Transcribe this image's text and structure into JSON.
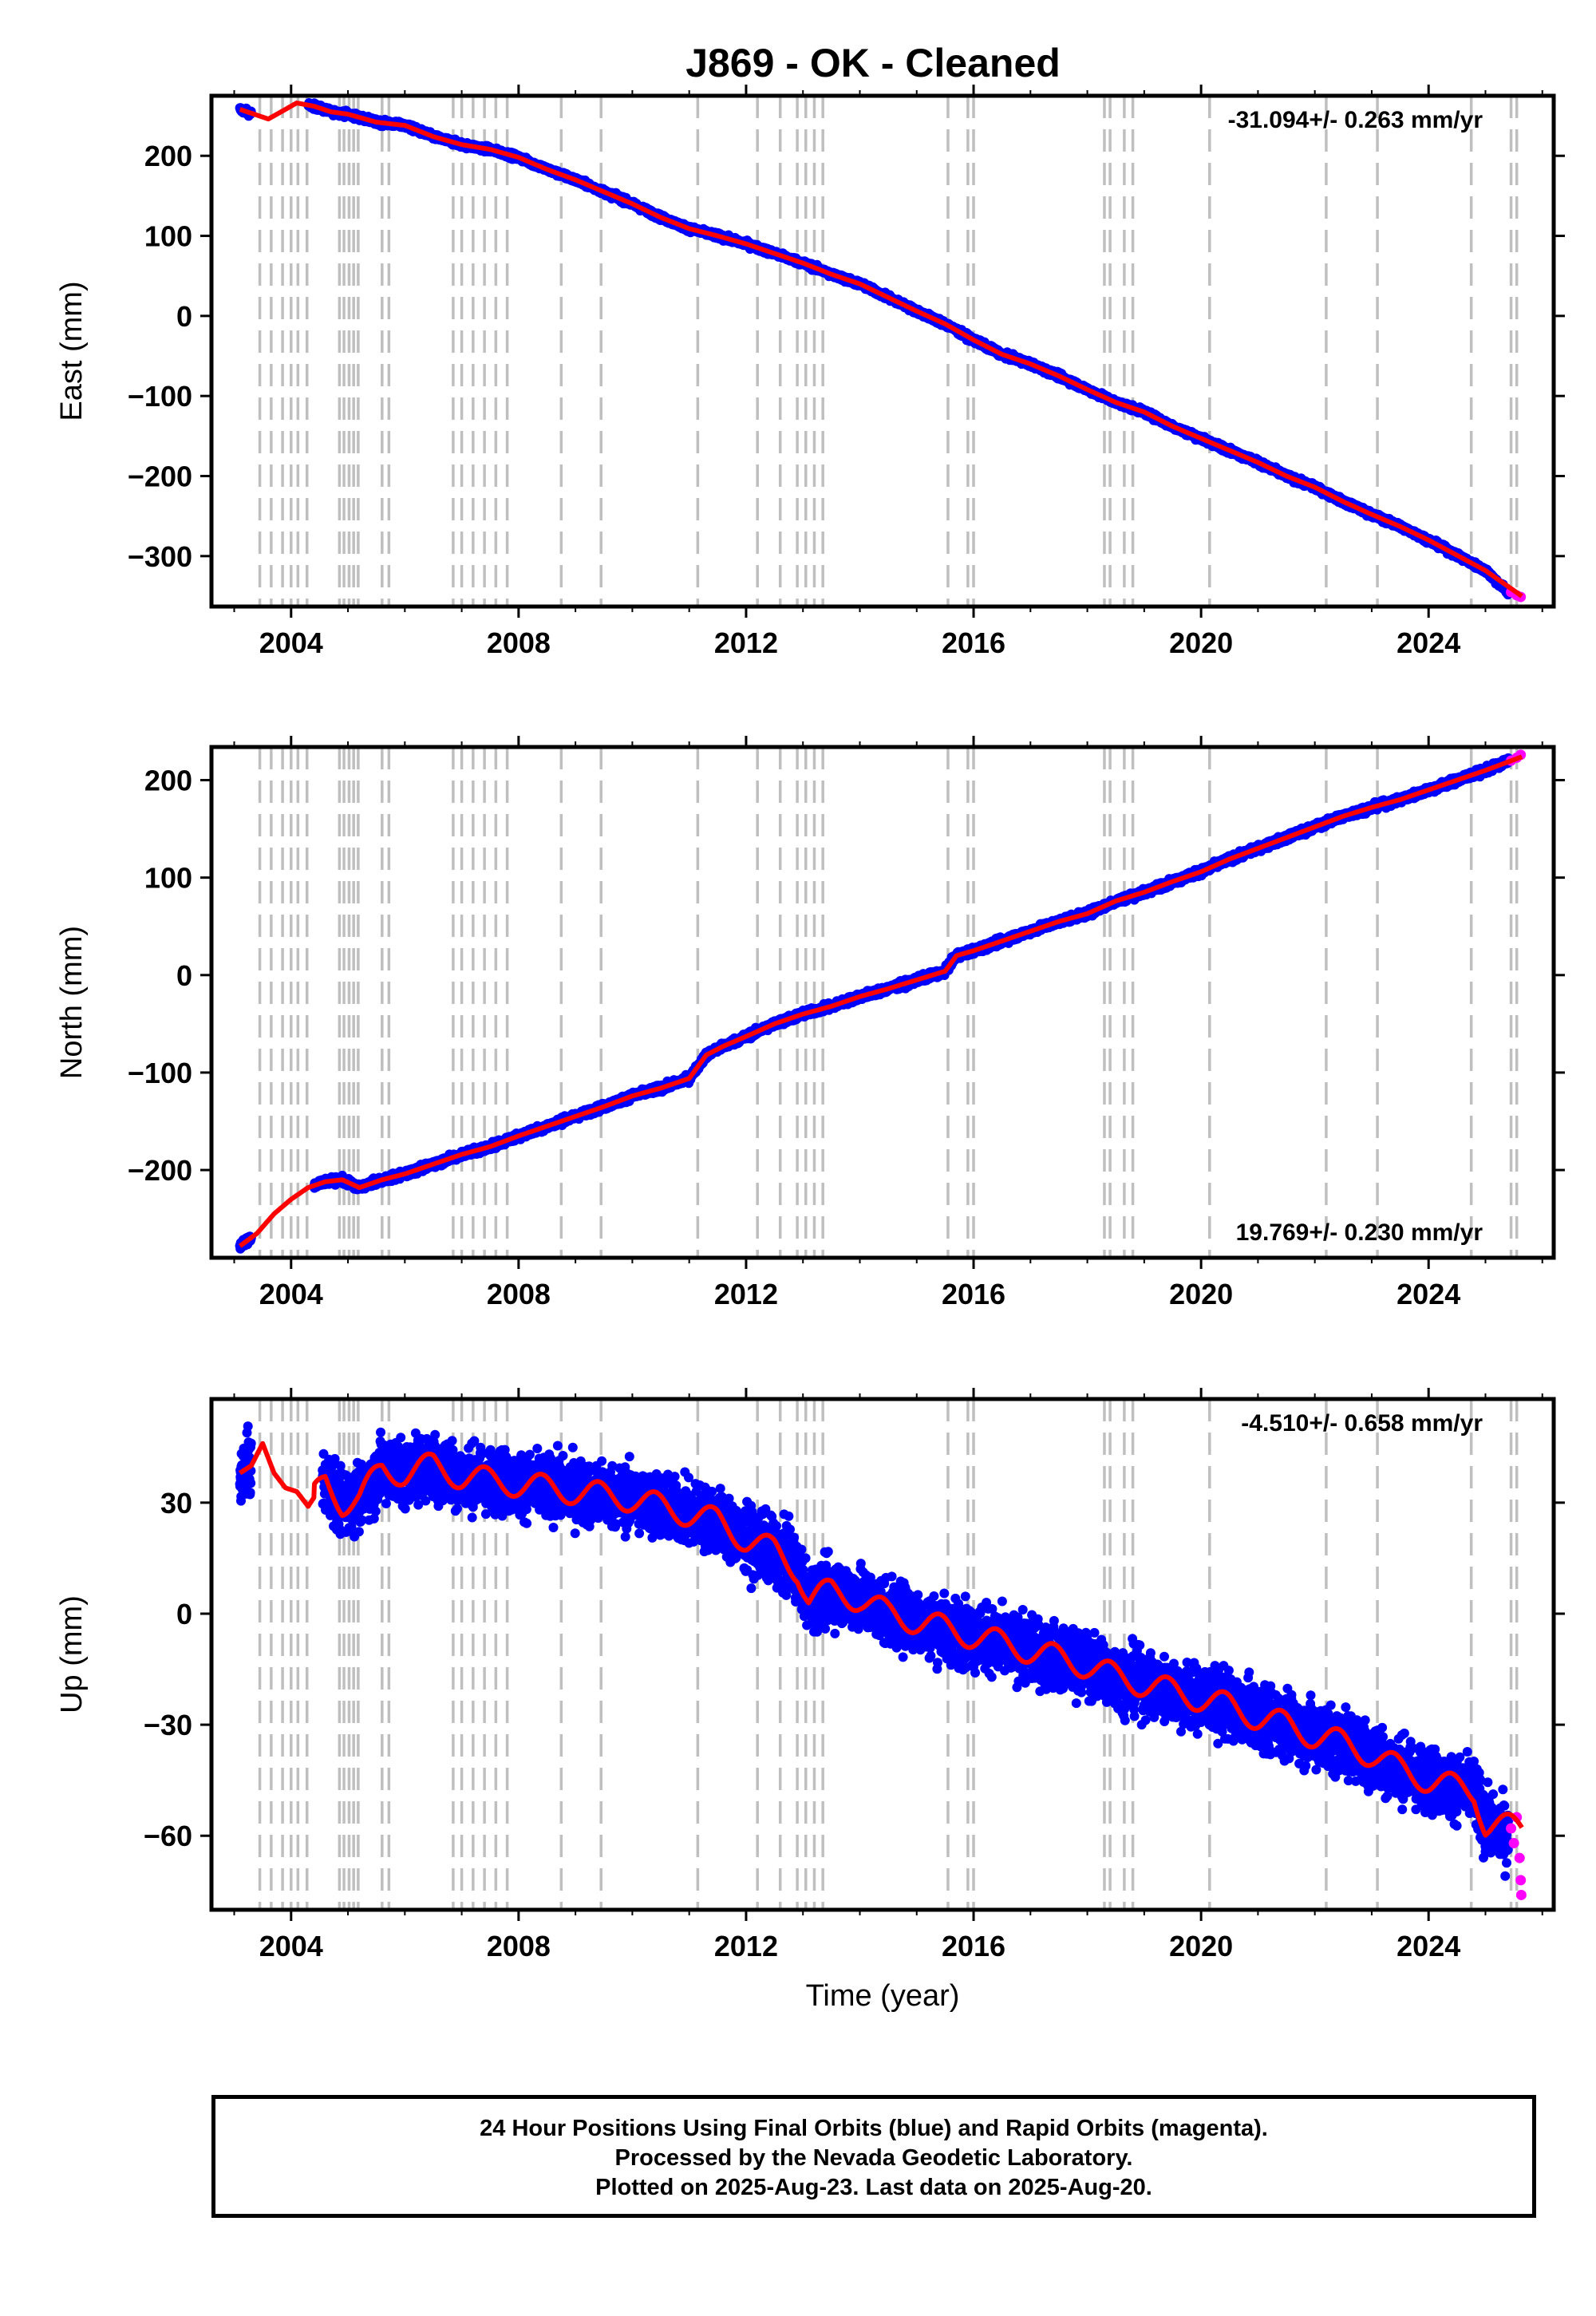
{
  "title": "J869  - OK - Cleaned",
  "footer": {
    "line1": "24 Hour Positions Using Final Orbits (blue) and Rapid Orbits (magenta).",
    "line2": "Processed by the Nevada Geodetic Laboratory.",
    "line3": "Plotted on 2025-Aug-23. Last data on 2025-Aug-20."
  },
  "colors": {
    "final_orbits": "#0000ff",
    "rapid_orbits": "#ff00ff",
    "model": "#ff0000",
    "breaks": "#bfbfbf"
  },
  "chart_data": [
    {
      "type": "scatter",
      "ylabel": "East (mm)",
      "xlabel": "",
      "rate": "-31.094+/- 0.263 mm/yr",
      "rate_position": "top-right",
      "xlim": [
        2002.6,
        2026.2
      ],
      "ylim": [
        -363,
        275
      ],
      "x_ticks": [
        2004,
        2008,
        2012,
        2016,
        2020,
        2024
      ],
      "y_ticks": [
        200,
        100,
        0,
        -100,
        -200,
        -300
      ],
      "y_tick_labels": [
        "200",
        "100",
        "0",
        "−100",
        "−200",
        "−300"
      ],
      "breaks": [
        2003.45,
        2003.65,
        2003.85,
        2004.0,
        2004.12,
        2004.28,
        2004.85,
        2004.93,
        2005.02,
        2005.1,
        2005.18,
        2005.6,
        2005.72,
        2006.85,
        2007.0,
        2007.2,
        2007.4,
        2007.6,
        2007.8,
        2008.75,
        2009.45,
        2011.15,
        2012.2,
        2012.6,
        2012.9,
        2013.05,
        2013.2,
        2013.35,
        2015.55,
        2015.9,
        2016.0,
        2018.3,
        2018.4,
        2018.65,
        2018.8,
        2020.15,
        2022.2,
        2023.1,
        2024.75,
        2025.45,
        2025.55
      ],
      "final_start": 2003.1,
      "final_gap": [
        2003.3,
        2004.3
      ],
      "final_end": 2025.4,
      "rapid_range": [
        2025.4,
        2025.64
      ],
      "noise_mm": 2.5,
      "series": [
        {
          "role": "final",
          "x": [
            2003.1,
            2003.35,
            2003.6,
            2003.9,
            2004.1,
            2004.4,
            2004.7,
            2005.0,
            2005.5,
            2006.0,
            2006.5,
            2007.0,
            2007.5,
            2008.0,
            2008.5,
            2009.0,
            2009.5,
            2010.0,
            2010.5,
            2011.0,
            2011.5,
            2012.0,
            2012.5,
            2013.0,
            2013.5,
            2014.0,
            2014.5,
            2015.0,
            2015.5,
            2016.0,
            2016.5,
            2017.0,
            2017.5,
            2018.0,
            2018.5,
            2019.0,
            2019.5,
            2020.0,
            2020.5,
            2021.0,
            2021.5,
            2022.0,
            2022.5,
            2023.0,
            2023.5,
            2024.0,
            2024.5,
            2025.0,
            2025.4
          ],
          "y": [
            258,
            252,
            246,
            258,
            266,
            262,
            255,
            252,
            242,
            238,
            224,
            214,
            208,
            198,
            183,
            170,
            155,
            140,
            123,
            109,
            100,
            90,
            78,
            66,
            52,
            40,
            23,
            6,
            -10,
            -30,
            -48,
            -60,
            -75,
            -92,
            -108,
            -120,
            -138,
            -153,
            -168,
            -183,
            -200,
            -214,
            -232,
            -248,
            -263,
            -280,
            -299,
            -318,
            -345
          ]
        },
        {
          "role": "model",
          "x": [
            2003.1,
            2003.35,
            2003.6,
            2003.9,
            2004.1,
            2004.4,
            2004.7,
            2005.0,
            2005.5,
            2006.0,
            2006.5,
            2007.0,
            2007.5,
            2008.0,
            2008.5,
            2009.0,
            2009.5,
            2010.0,
            2010.5,
            2011.0,
            2011.5,
            2012.0,
            2012.5,
            2013.0,
            2013.5,
            2014.0,
            2014.5,
            2015.0,
            2015.5,
            2016.0,
            2016.5,
            2017.0,
            2017.5,
            2018.0,
            2018.5,
            2019.0,
            2019.5,
            2020.0,
            2020.5,
            2021.0,
            2021.5,
            2022.0,
            2022.5,
            2023.0,
            2023.5,
            2024.0,
            2024.5,
            2025.0,
            2025.64
          ],
          "y": [
            258,
            252,
            246,
            258,
            266,
            262,
            255,
            252,
            242,
            238,
            224,
            214,
            208,
            198,
            183,
            170,
            155,
            140,
            123,
            109,
            100,
            90,
            78,
            66,
            52,
            40,
            23,
            6,
            -10,
            -30,
            -48,
            -60,
            -75,
            -92,
            -108,
            -120,
            -138,
            -153,
            -168,
            -183,
            -200,
            -214,
            -232,
            -248,
            -263,
            -280,
            -299,
            -318,
            -350
          ]
        },
        {
          "role": "rapid",
          "x": [
            2025.45,
            2025.55,
            2025.62
          ],
          "y": [
            -345,
            -349,
            -351
          ]
        }
      ]
    },
    {
      "type": "scatter",
      "ylabel": "North (mm)",
      "xlabel": "",
      "rate": "19.769+/- 0.230 mm/yr",
      "rate_position": "bottom-right",
      "xlim": [
        2002.6,
        2026.2
      ],
      "ylim": [
        -290,
        234
      ],
      "x_ticks": [
        2004,
        2008,
        2012,
        2016,
        2020,
        2024
      ],
      "y_ticks": [
        200,
        100,
        0,
        -100,
        -200
      ],
      "y_tick_labels": [
        "200",
        "100",
        "0",
        "−100",
        "−200"
      ],
      "breaks": [
        2003.45,
        2003.65,
        2003.85,
        2004.0,
        2004.12,
        2004.28,
        2004.85,
        2004.93,
        2005.02,
        2005.1,
        2005.18,
        2005.6,
        2005.72,
        2006.85,
        2007.0,
        2007.2,
        2007.4,
        2007.6,
        2007.8,
        2008.75,
        2009.45,
        2011.15,
        2012.2,
        2012.6,
        2012.9,
        2013.05,
        2013.2,
        2013.35,
        2015.55,
        2015.9,
        2016.0,
        2018.3,
        2018.4,
        2018.65,
        2018.8,
        2020.15,
        2022.2,
        2023.1,
        2024.75,
        2025.45,
        2025.55
      ],
      "final_start": 2003.1,
      "final_gap": [
        2003.3,
        2004.4
      ],
      "final_end": 2025.4,
      "rapid_range": [
        2025.4,
        2025.64
      ],
      "noise_mm": 2.5,
      "series": [
        {
          "role": "final",
          "x": [
            2003.1,
            2003.4,
            2003.7,
            2004.0,
            2004.3,
            2004.6,
            2004.9,
            2005.2,
            2005.6,
            2006.0,
            2006.5,
            2007.0,
            2007.5,
            2008.0,
            2008.5,
            2009.0,
            2009.5,
            2010.0,
            2010.5,
            2011.0,
            2011.1,
            2011.3,
            2011.6,
            2012.0,
            2012.5,
            2013.0,
            2013.5,
            2014.0,
            2014.5,
            2015.0,
            2015.5,
            2015.7,
            2016.0,
            2016.5,
            2017.0,
            2017.5,
            2018.0,
            2018.5,
            2019.0,
            2019.5,
            2020.0,
            2020.5,
            2021.0,
            2021.5,
            2022.0,
            2022.5,
            2023.0,
            2023.5,
            2024.0,
            2024.5,
            2025.0,
            2025.4
          ],
          "y": [
            -278,
            -265,
            -245,
            -230,
            -218,
            -212,
            -210,
            -218,
            -210,
            -204,
            -194,
            -184,
            -176,
            -165,
            -155,
            -145,
            -135,
            -124,
            -116,
            -106,
            -98,
            -82,
            -73,
            -63,
            -50,
            -40,
            -32,
            -22,
            -14,
            -5,
            4,
            20,
            25,
            35,
            45,
            55,
            63,
            76,
            85,
            96,
            106,
            119,
            130,
            141,
            152,
            163,
            172,
            180,
            190,
            200,
            210,
            220
          ]
        },
        {
          "role": "model",
          "x": [
            2003.1,
            2003.4,
            2003.7,
            2004.0,
            2004.3,
            2004.6,
            2004.9,
            2005.2,
            2005.6,
            2006.0,
            2006.5,
            2007.0,
            2007.5,
            2008.0,
            2008.5,
            2009.0,
            2009.5,
            2010.0,
            2010.5,
            2011.0,
            2011.1,
            2011.3,
            2011.6,
            2012.0,
            2012.5,
            2013.0,
            2013.5,
            2014.0,
            2014.5,
            2015.0,
            2015.5,
            2015.7,
            2016.0,
            2016.5,
            2017.0,
            2017.5,
            2018.0,
            2018.5,
            2019.0,
            2019.5,
            2020.0,
            2020.5,
            2021.0,
            2021.5,
            2022.0,
            2022.5,
            2023.0,
            2023.5,
            2024.0,
            2024.5,
            2025.0,
            2025.64
          ],
          "y": [
            -278,
            -265,
            -245,
            -230,
            -218,
            -212,
            -210,
            -218,
            -210,
            -204,
            -194,
            -184,
            -176,
            -165,
            -155,
            -145,
            -135,
            -124,
            -116,
            -106,
            -98,
            -82,
            -73,
            -63,
            -50,
            -40,
            -32,
            -22,
            -14,
            -5,
            4,
            20,
            25,
            35,
            45,
            55,
            63,
            76,
            85,
            96,
            106,
            119,
            130,
            141,
            152,
            163,
            172,
            180,
            190,
            200,
            210,
            224
          ]
        },
        {
          "role": "rapid",
          "x": [
            2025.45,
            2025.55,
            2025.62
          ],
          "y": [
            220,
            223,
            226
          ]
        }
      ]
    },
    {
      "type": "scatter",
      "ylabel": "Up (mm)",
      "xlabel": "Time (year)",
      "rate": "-4.510+/- 0.658 mm/yr",
      "rate_position": "top-right",
      "xlim": [
        2002.6,
        2026.2
      ],
      "ylim": [
        -80,
        58
      ],
      "x_ticks": [
        2004,
        2008,
        2012,
        2016,
        2020,
        2024
      ],
      "y_ticks": [
        30,
        0,
        -30,
        -60
      ],
      "y_tick_labels": [
        "30",
        "0",
        "−30",
        "−60"
      ],
      "breaks": [
        2003.45,
        2003.65,
        2003.85,
        2004.0,
        2004.12,
        2004.28,
        2004.85,
        2004.93,
        2005.02,
        2005.1,
        2005.18,
        2005.6,
        2005.72,
        2006.85,
        2007.0,
        2007.2,
        2007.4,
        2007.6,
        2007.8,
        2008.75,
        2009.45,
        2011.15,
        2012.2,
        2012.6,
        2012.9,
        2013.05,
        2013.2,
        2013.35,
        2015.55,
        2015.9,
        2016.0,
        2018.3,
        2018.4,
        2018.65,
        2018.8,
        2020.15,
        2022.2,
        2023.1,
        2024.75,
        2025.45,
        2025.55
      ],
      "final_start": 2003.1,
      "final_gap": [
        2003.3,
        2004.55
      ],
      "final_end": 2025.4,
      "rapid_range": [
        2025.4,
        2025.64
      ],
      "noise_mm": 6,
      "series": [
        {
          "role": "final",
          "x": [
            2003.1,
            2003.3,
            2003.5,
            2003.7,
            2003.9,
            2004.1,
            2004.3,
            2004.6,
            2004.9,
            2005.2,
            2005.6,
            2006.0,
            2006.5,
            2007.0,
            2007.5,
            2008.0,
            2008.5,
            2009.0,
            2009.5,
            2010.0,
            2010.5,
            2011.0,
            2011.5,
            2012.0,
            2012.5,
            2012.9,
            2013.1,
            2013.5,
            2014.0,
            2014.5,
            2015.0,
            2015.5,
            2016.0,
            2016.5,
            2017.0,
            2017.5,
            2018.0,
            2018.5,
            2019.0,
            2019.5,
            2020.0,
            2020.5,
            2021.0,
            2021.5,
            2022.0,
            2022.5,
            2023.0,
            2023.5,
            2024.0,
            2024.5,
            2024.8,
            2025.0,
            2025.4
          ],
          "y": [
            38,
            40,
            46,
            38,
            34,
            33,
            29,
            36,
            30,
            31,
            39,
            38,
            40,
            37,
            36,
            35,
            34,
            33,
            32,
            31,
            29,
            27,
            25,
            20,
            17,
            12,
            4,
            6,
            4,
            0,
            -2,
            -4,
            -6,
            -8,
            -10,
            -12,
            -14,
            -17,
            -19,
            -21,
            -23,
            -25,
            -28,
            -30,
            -33,
            -35,
            -38,
            -42,
            -45,
            -47,
            -48,
            -57,
            -60
          ]
        },
        {
          "role": "model",
          "x": [
            2003.1,
            2003.3,
            2003.5,
            2003.7,
            2003.9,
            2004.1,
            2004.3,
            2004.6,
            2004.9,
            2005.2,
            2005.6,
            2006.0,
            2006.5,
            2007.0,
            2007.5,
            2008.0,
            2008.5,
            2009.0,
            2009.5,
            2010.0,
            2010.5,
            2011.0,
            2011.5,
            2012.0,
            2012.5,
            2012.9,
            2013.1,
            2013.5,
            2014.0,
            2014.5,
            2015.0,
            2015.5,
            2016.0,
            2016.5,
            2017.0,
            2017.5,
            2018.0,
            2018.5,
            2019.0,
            2019.5,
            2020.0,
            2020.5,
            2021.0,
            2021.5,
            2022.0,
            2022.5,
            2023.0,
            2023.5,
            2024.0,
            2024.5,
            2024.8,
            2025.0,
            2025.64
          ],
          "y": [
            38,
            40,
            46,
            38,
            34,
            33,
            29,
            36,
            30,
            31,
            39,
            38,
            40,
            37,
            36,
            35,
            34,
            33,
            32,
            31,
            29,
            27,
            25,
            20,
            17,
            12,
            4,
            6,
            4,
            0,
            -2,
            -4,
            -6,
            -8,
            -10,
            -12,
            -14,
            -17,
            -19,
            -21,
            -23,
            -25,
            -28,
            -30,
            -33,
            -35,
            -38,
            -42,
            -45,
            -47,
            -48,
            -57,
            -58
          ]
        },
        {
          "role": "rapid",
          "x": [
            2025.45,
            2025.5,
            2025.55,
            2025.6,
            2025.62,
            2025.63
          ],
          "y": [
            -58,
            -62,
            -55,
            -66,
            -72,
            -76
          ]
        }
      ]
    }
  ]
}
